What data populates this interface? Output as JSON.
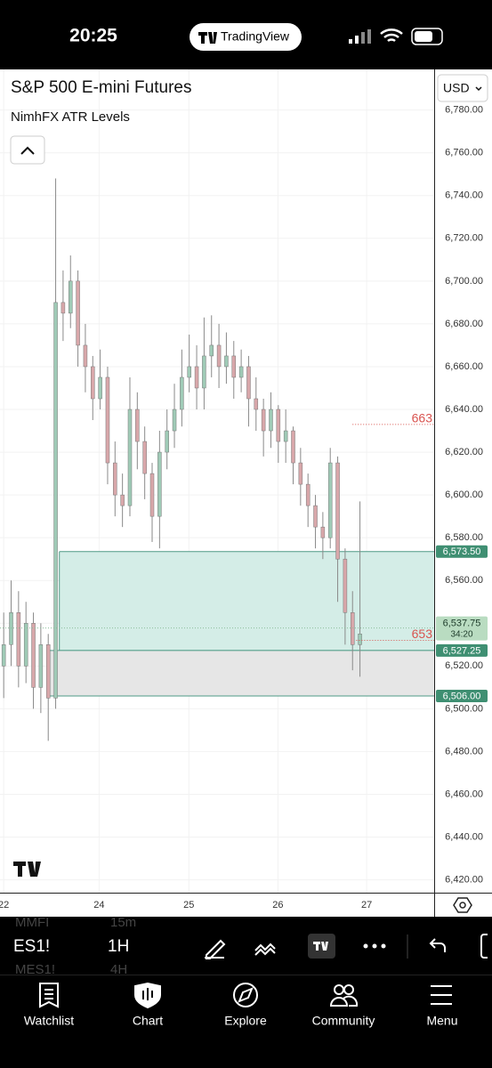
{
  "status_bar": {
    "time": "20:25",
    "app": "TradingView"
  },
  "header": {
    "symbol": "S&P 500 E-mini Futures",
    "indicator": "NimhFX ATR Levels",
    "currency": "USD"
  },
  "chart_data": {
    "type": "candlestick",
    "x": [
      0,
      2,
      4,
      6,
      8,
      10,
      12,
      14,
      16,
      18,
      20,
      22,
      24,
      26,
      28,
      30,
      32,
      34,
      36,
      38,
      40,
      42,
      44,
      46,
      48,
      50,
      52,
      54,
      56,
      58,
      60,
      62,
      64,
      66,
      68,
      70,
      72,
      74,
      76,
      78,
      80,
      82,
      84,
      86,
      88,
      90,
      92,
      94,
      96
    ],
    "open": [
      6520,
      6530,
      6545,
      6520,
      6540,
      6510,
      6530,
      6505,
      6690,
      6685,
      6700,
      6670,
      6660,
      6645,
      6655,
      6615,
      6600,
      6595,
      6640,
      6625,
      6610,
      6590,
      6620,
      6630,
      6640,
      6655,
      6660,
      6650,
      6665,
      6670,
      6660,
      6665,
      6655,
      6660,
      6645,
      6640,
      6630,
      6640,
      6625,
      6630,
      6615,
      6605,
      6595,
      6585,
      6580,
      6615,
      6570,
      6545,
      6530
    ],
    "high": [
      6545,
      6560,
      6555,
      6550,
      6545,
      6540,
      6535,
      6748,
      6705,
      6712,
      6705,
      6680,
      6665,
      6668,
      6660,
      6625,
      6610,
      6655,
      6648,
      6632,
      6615,
      6630,
      6640,
      6652,
      6668,
      6675,
      6670,
      6683,
      6684,
      6680,
      6676,
      6672,
      6668,
      6665,
      6655,
      6645,
      6648,
      6642,
      6640,
      6632,
      6622,
      6610,
      6600,
      6592,
      6622,
      6618,
      6575,
      6555,
      6597
    ],
    "low": [
      6505,
      6520,
      6510,
      6512,
      6500,
      6498,
      6485,
      6500,
      6672,
      6678,
      6660,
      6648,
      6635,
      6640,
      6605,
      6590,
      6585,
      6590,
      6612,
      6598,
      6578,
      6575,
      6612,
      6622,
      6632,
      6648,
      6640,
      6640,
      6655,
      6650,
      6652,
      6645,
      6648,
      6632,
      6630,
      6618,
      6622,
      6615,
      6615,
      6605,
      6595,
      6585,
      6575,
      6570,
      6575,
      6550,
      6530,
      6518,
      6515
    ],
    "close": [
      6530,
      6545,
      6520,
      6540,
      6510,
      6530,
      6505,
      6690,
      6685,
      6700,
      6670,
      6660,
      6645,
      6655,
      6615,
      6600,
      6595,
      6640,
      6625,
      6610,
      6590,
      6620,
      6630,
      6640,
      6655,
      6660,
      6650,
      6665,
      6670,
      6660,
      6665,
      6655,
      6660,
      6645,
      6640,
      6630,
      6640,
      6625,
      6630,
      6615,
      6605,
      6595,
      6585,
      6580,
      6615,
      6570,
      6545,
      6530,
      6535
    ],
    "up_color": "#9fcab6",
    "down_color": "#d8a7aa",
    "wick_color": "#8a8a8a",
    "grid": true,
    "xlim": [
      -1,
      116
    ],
    "xticks": [
      {
        "value": 0,
        "label": "22"
      },
      {
        "value": 25.7,
        "label": "24"
      },
      {
        "value": 49.9,
        "label": "25"
      },
      {
        "value": 73.9,
        "label": "26"
      },
      {
        "value": 97.8,
        "label": "27"
      }
    ],
    "ylim": [
      6414,
      6799
    ],
    "yticks": [
      {
        "value": 6420,
        "label": "6,420.00"
      },
      {
        "value": 6440,
        "label": "6,440.00"
      },
      {
        "value": 6460,
        "label": "6,460.00"
      },
      {
        "value": 6480,
        "label": "6,480.00"
      },
      {
        "value": 6500,
        "label": "6,500.00"
      },
      {
        "value": 6520,
        "label": "6,520.00"
      },
      {
        "value": 6540,
        "label": "6,540.00"
      },
      {
        "value": 6560,
        "label": "6,560.00"
      },
      {
        "value": 6580,
        "label": "6,580.00"
      },
      {
        "value": 6600,
        "label": "6,600.00"
      },
      {
        "value": 6620,
        "label": "6,620.00"
      },
      {
        "value": 6640,
        "label": "6,640.00"
      },
      {
        "value": 6660,
        "label": "6,660.00"
      },
      {
        "value": 6680,
        "label": "6,680.00"
      },
      {
        "value": 6700,
        "label": "6,700.00"
      },
      {
        "value": 6720,
        "label": "6,720.00"
      },
      {
        "value": 6740,
        "label": "6,740.00"
      },
      {
        "value": 6760,
        "label": "6,760.00"
      },
      {
        "value": 6780,
        "label": "6,780.00"
      }
    ],
    "zones": [
      {
        "top": 6573.5,
        "bottom": 6527.25,
        "start": 15,
        "color": "#d4ede7",
        "line_color": "#4f9a86"
      },
      {
        "top": 6527.25,
        "bottom": 6506,
        "start": 12,
        "color": "#e6e6e6",
        "line_color": "#4f9a86"
      }
    ],
    "price_labels": [
      {
        "value": 6573.5,
        "label": "6,573.50"
      },
      {
        "value": 6527.25,
        "label": "6,527.25"
      },
      {
        "value": 6506,
        "label": "6,506.00"
      }
    ],
    "last_price": {
      "value": 6537.75,
      "label": "6,537.75",
      "countdown": "34:20"
    },
    "atr_levels": [
      {
        "price": 6633,
        "text": "663",
        "start": 94
      },
      {
        "price": 6532,
        "text": "653",
        "start": 95
      }
    ]
  },
  "toolbar": {
    "symbol": "ES1!",
    "interval": "1H",
    "ghost": [
      "MMFI",
      "15m",
      "MES1!",
      "4H"
    ]
  },
  "nav": [
    "Watchlist",
    "Chart",
    "Explore",
    "Community",
    "Menu"
  ]
}
